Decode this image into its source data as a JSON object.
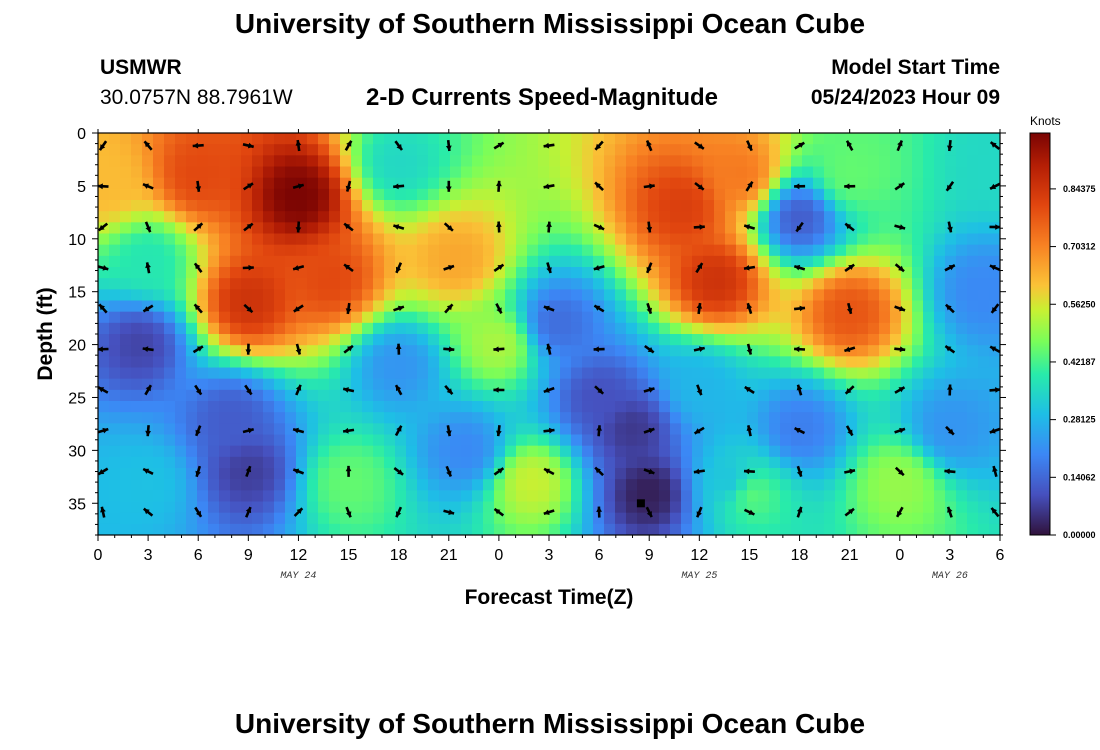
{
  "title": "University of Southern Mississippi Ocean Cube",
  "title_repeat": "University of Southern Mississippi Ocean Cube",
  "station": "USMWR",
  "coords": "30.0757N  88.7961W",
  "subtitle": "2-D Currents Speed-Magnitude",
  "model_start_label": "Model Start Time",
  "model_start_value": "05/24/2023 Hour 09",
  "chart_data": {
    "type": "heatmap",
    "title": "2-D Currents Speed-Magnitude",
    "xlabel": "Forecast Time(Z)",
    "ylabel": "Depth (ft)",
    "x_tick_labels": [
      "0",
      "3",
      "6",
      "9",
      "12",
      "15",
      "18",
      "21",
      "0",
      "3",
      "6",
      "9",
      "12",
      "15",
      "18",
      "21",
      "0",
      "3",
      "6"
    ],
    "x_range_hours": [
      0,
      54
    ],
    "date_labels": [
      {
        "label": "MAY 24",
        "hour": 12
      },
      {
        "label": "MAY 25",
        "hour": 36
      },
      {
        "label": "MAY 26",
        "hour": 51
      }
    ],
    "y_ticks": [
      0,
      5,
      10,
      15,
      20,
      25,
      30,
      35
    ],
    "y_range_ft": [
      0,
      38
    ],
    "colorbar": {
      "title": "Knots",
      "min": 0,
      "max": 0.98,
      "labels": [
        "0.00000",
        "0.14062",
        "0.28125",
        "0.42187",
        "0.56250",
        "0.70312",
        "0.84375"
      ]
    },
    "speed_features_knots": [
      {
        "hour": 12,
        "depth": 6,
        "speed": 0.98
      },
      {
        "hour": 9,
        "depth": 16,
        "speed": 0.85
      },
      {
        "hour": 6,
        "depth": 4,
        "speed": 0.8
      },
      {
        "hour": 14,
        "depth": 14,
        "speed": 0.8
      },
      {
        "hour": 0.5,
        "depth": 5,
        "speed": 0.62
      },
      {
        "hour": 3,
        "depth": 12,
        "speed": 0.38
      },
      {
        "hour": 2.5,
        "depth": 20,
        "speed": 0.08
      },
      {
        "hour": 8,
        "depth": 27,
        "speed": 0.12
      },
      {
        "hour": 9,
        "depth": 32,
        "speed": 0.07
      },
      {
        "hour": 3,
        "depth": 33,
        "speed": 0.3
      },
      {
        "hour": 15,
        "depth": 33,
        "speed": 0.45
      },
      {
        "hour": 18,
        "depth": 22,
        "speed": 0.22
      },
      {
        "hour": 18,
        "depth": 3,
        "speed": 0.35
      },
      {
        "hour": 21.5,
        "depth": 12,
        "speed": 0.65
      },
      {
        "hour": 22,
        "depth": 30,
        "speed": 0.2
      },
      {
        "hour": 24,
        "depth": 20,
        "speed": 0.52
      },
      {
        "hour": 26,
        "depth": 33,
        "speed": 0.55
      },
      {
        "hour": 27.5,
        "depth": 18,
        "speed": 0.15
      },
      {
        "hour": 33,
        "depth": 34,
        "speed": 0.02
      },
      {
        "hour": 32,
        "depth": 28,
        "speed": 0.06
      },
      {
        "hour": 30,
        "depth": 25,
        "speed": 0.1
      },
      {
        "hour": 35,
        "depth": 7,
        "speed": 0.82
      },
      {
        "hour": 37,
        "depth": 14,
        "speed": 0.85
      },
      {
        "hour": 38.5,
        "depth": 4,
        "speed": 0.72
      },
      {
        "hour": 36,
        "depth": 24,
        "speed": 0.28
      },
      {
        "hour": 38,
        "depth": 33,
        "speed": 0.3
      },
      {
        "hour": 39,
        "depth": 34,
        "speed": 0.45
      },
      {
        "hour": 42,
        "depth": 8,
        "speed": 0.12
      },
      {
        "hour": 42,
        "depth": 28,
        "speed": 0.18
      },
      {
        "hour": 45,
        "depth": 17,
        "speed": 0.78
      },
      {
        "hour": 45,
        "depth": 4,
        "speed": 0.45
      },
      {
        "hour": 48,
        "depth": 33,
        "speed": 0.5
      },
      {
        "hour": 51,
        "depth": 28,
        "speed": 0.22
      },
      {
        "hour": 53,
        "depth": 15,
        "speed": 0.2
      },
      {
        "hour": 54,
        "depth": 3,
        "speed": 0.35
      }
    ],
    "marker": {
      "hour": 32.5,
      "depth": 35
    }
  }
}
